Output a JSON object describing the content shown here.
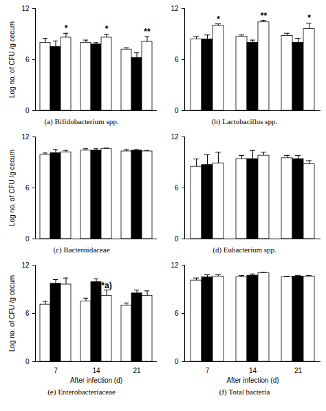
{
  "chart_data": [
    {
      "type": "bar",
      "title": "(a) Bifidobacterium spp.",
      "y_label": "Log no. of CFU /g cecum",
      "categories": [
        null,
        null,
        null
      ],
      "tick_labels": "y",
      "ylim": [
        0,
        12
      ],
      "yticks": [
        0,
        6,
        12
      ],
      "series": [
        {
          "color": "#333333",
          "values": [
            8.0,
            8.0,
            7.2
          ],
          "errors": [
            0.5,
            0.3,
            0.2
          ]
        },
        {
          "color": "#000000",
          "values": [
            7.5,
            7.8,
            6.2
          ],
          "errors": [
            0.7,
            0.2,
            0.6
          ]
        },
        {
          "color": "#ffffff",
          "values": [
            8.6,
            8.6,
            8.1
          ],
          "errors": [
            0.5,
            0.4,
            0.6
          ]
        }
      ],
      "annotations": [
        {
          "category": 0,
          "series": 2,
          "text": "*"
        },
        {
          "category": 1,
          "series": 2,
          "text": "*"
        },
        {
          "category": 2,
          "series": 2,
          "text": "**"
        }
      ]
    },
    {
      "type": "bar",
      "title": "(b) Lactobacillus spp.",
      "categories": [
        null,
        null,
        null
      ],
      "tick_labels": "y",
      "ylim": [
        0,
        12
      ],
      "yticks": [
        0,
        6,
        12
      ],
      "series": [
        {
          "color": "#333333",
          "values": [
            8.4,
            8.7,
            8.8
          ],
          "errors": [
            0.3,
            0.2,
            0.3
          ]
        },
        {
          "color": "#000000",
          "values": [
            8.4,
            8.0,
            8.0
          ],
          "errors": [
            0.5,
            0.3,
            0.5
          ]
        },
        {
          "color": "#ffffff",
          "values": [
            10.0,
            10.4,
            9.6
          ],
          "errors": [
            0.2,
            0.2,
            0.7
          ]
        }
      ],
      "annotations": [
        {
          "category": 0,
          "series": 2,
          "text": "*"
        },
        {
          "category": 1,
          "series": 2,
          "text": "**"
        },
        {
          "category": 2,
          "series": 2,
          "text": "*"
        }
      ]
    },
    {
      "type": "bar",
      "title": "(c) Bacteroidaceae",
      "y_label": "Log no. of CFU /g cecum",
      "categories": [
        null,
        null,
        null
      ],
      "tick_labels": "y",
      "ylim": [
        0,
        12
      ],
      "yticks": [
        0,
        6,
        12
      ],
      "series": [
        {
          "color": "#333333",
          "values": [
            9.9,
            10.4,
            10.3
          ],
          "errors": [
            0.2,
            0.2,
            0.2
          ]
        },
        {
          "color": "#000000",
          "values": [
            10.1,
            10.4,
            10.4
          ],
          "errors": [
            0.4,
            0.2,
            0.1
          ]
        },
        {
          "color": "#ffffff",
          "values": [
            10.2,
            10.6,
            10.3
          ],
          "errors": [
            0.2,
            0.1,
            0.1
          ]
        }
      ],
      "annotations": []
    },
    {
      "type": "bar",
      "title": "(d) Eubacterium spp.",
      "categories": [
        null,
        null,
        null
      ],
      "tick_labels": "y",
      "ylim": [
        0,
        12
      ],
      "yticks": [
        0,
        6,
        12
      ],
      "series": [
        {
          "color": "#333333",
          "values": [
            8.5,
            9.4,
            9.5
          ],
          "errors": [
            0.9,
            0.4,
            0.3
          ]
        },
        {
          "color": "#000000",
          "values": [
            8.7,
            9.4,
            9.4
          ],
          "errors": [
            1.2,
            1.0,
            0.4
          ]
        },
        {
          "color": "#ffffff",
          "values": [
            8.9,
            9.8,
            8.8
          ],
          "errors": [
            1.3,
            0.4,
            0.4
          ]
        }
      ],
      "annotations": []
    },
    {
      "type": "bar",
      "title": "(e) Enterobacteriaceae",
      "y_label": "Log no. of CFU /g cecum",
      "x_label": "After infection (d)",
      "categories": [
        "7",
        "14",
        "21"
      ],
      "ylim": [
        0,
        12
      ],
      "yticks": [
        0,
        6,
        12
      ],
      "series": [
        {
          "color": "#333333",
          "values": [
            7.1,
            7.5,
            7.0
          ],
          "errors": [
            0.4,
            0.4,
            0.3
          ]
        },
        {
          "color": "#000000",
          "values": [
            9.7,
            9.9,
            8.5
          ],
          "errors": [
            0.5,
            0.4,
            0.4
          ]
        },
        {
          "color": "#ffffff",
          "values": [
            9.6,
            8.2,
            8.2
          ],
          "errors": [
            0.8,
            0.7,
            0.6
          ]
        }
      ],
      "annotations": [
        {
          "category": 1,
          "series": 2,
          "text": "*a)"
        }
      ]
    },
    {
      "type": "bar",
      "title": "(f) Total bacteria",
      "x_label": "After infection (d)",
      "categories": [
        "7",
        "14",
        "21"
      ],
      "ylim": [
        0,
        12
      ],
      "yticks": [
        0,
        6,
        12
      ],
      "series": [
        {
          "color": "#333333",
          "values": [
            10.1,
            10.5,
            10.5
          ],
          "errors": [
            0.3,
            0.2,
            0.1
          ]
        },
        {
          "color": "#000000",
          "values": [
            10.5,
            10.7,
            10.6
          ],
          "errors": [
            0.3,
            0.2,
            0.1
          ]
        },
        {
          "color": "#ffffff",
          "values": [
            10.6,
            11.0,
            10.6
          ],
          "errors": [
            0.2,
            0.1,
            0.1
          ]
        }
      ],
      "annotations": []
    }
  ]
}
